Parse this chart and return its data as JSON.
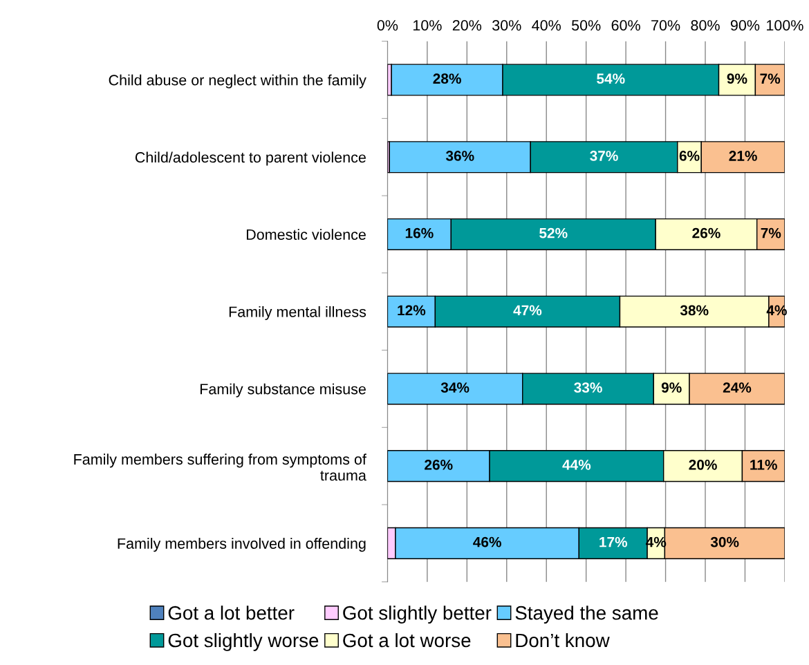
{
  "chart_data": {
    "type": "bar",
    "orientation": "horizontal",
    "stacked": true,
    "categories": [
      "Child abuse or neglect within the family",
      "Child/adolescent to parent violence",
      "Domestic violence",
      "Family mental illness",
      "Family substance misuse",
      "Family members suffering from symptoms of\ntrauma",
      "Family members involved in offending"
    ],
    "series": [
      {
        "name": "Got a lot better",
        "color": "#4f81bd",
        "values": [
          0,
          0,
          0,
          0,
          0,
          0,
          0
        ]
      },
      {
        "name": "Got slightly better",
        "color": "#ffccff",
        "values": [
          1,
          0.5,
          0,
          0,
          0,
          0,
          2
        ]
      },
      {
        "name": "Stayed the same",
        "color": "#66ccff",
        "values": [
          28,
          35.5,
          16,
          12,
          34,
          25.7,
          46.2
        ],
        "value_labels": [
          "28%",
          "36%",
          "16%",
          "12%",
          "34%",
          "26%",
          "46%"
        ]
      },
      {
        "name": "Got slightly worse",
        "color": "#009999",
        "values": [
          54.4,
          37,
          51.5,
          46.5,
          33,
          43.8,
          17.2
        ],
        "value_labels": [
          "54%",
          "37%",
          "52%",
          "47%",
          "33%",
          "44%",
          "17%"
        ]
      },
      {
        "name": "Got a lot worse",
        "color": "#ffffcc",
        "values": [
          9.2,
          6,
          25.5,
          37.5,
          9,
          19.8,
          4.4
        ],
        "value_labels": [
          "9%",
          "6%",
          "26%",
          "38%",
          "9%",
          "20%",
          "4%"
        ]
      },
      {
        "name": "Don’t know",
        "color": "#fac090",
        "values": [
          7.4,
          21,
          7,
          4,
          24,
          10.7,
          30.2
        ],
        "value_labels": [
          "7%",
          "21%",
          "7%",
          "4%",
          "24%",
          "11%",
          "30%"
        ]
      }
    ],
    "xlim": [
      0,
      100
    ],
    "xticks": [
      {
        "value": 0,
        "label": "0%"
      },
      {
        "value": 10,
        "label": "10%"
      },
      {
        "value": 20,
        "label": "20%"
      },
      {
        "value": 30,
        "label": "30%"
      },
      {
        "value": 40,
        "label": "40%"
      },
      {
        "value": 50,
        "label": "50%"
      },
      {
        "value": 60,
        "label": "60%"
      },
      {
        "value": 70,
        "label": "70%"
      },
      {
        "value": 80,
        "label": "80%"
      },
      {
        "value": 90,
        "label": "90%"
      },
      {
        "value": 100,
        "label": "100%"
      }
    ],
    "grid": "x",
    "legend": "bottom"
  }
}
